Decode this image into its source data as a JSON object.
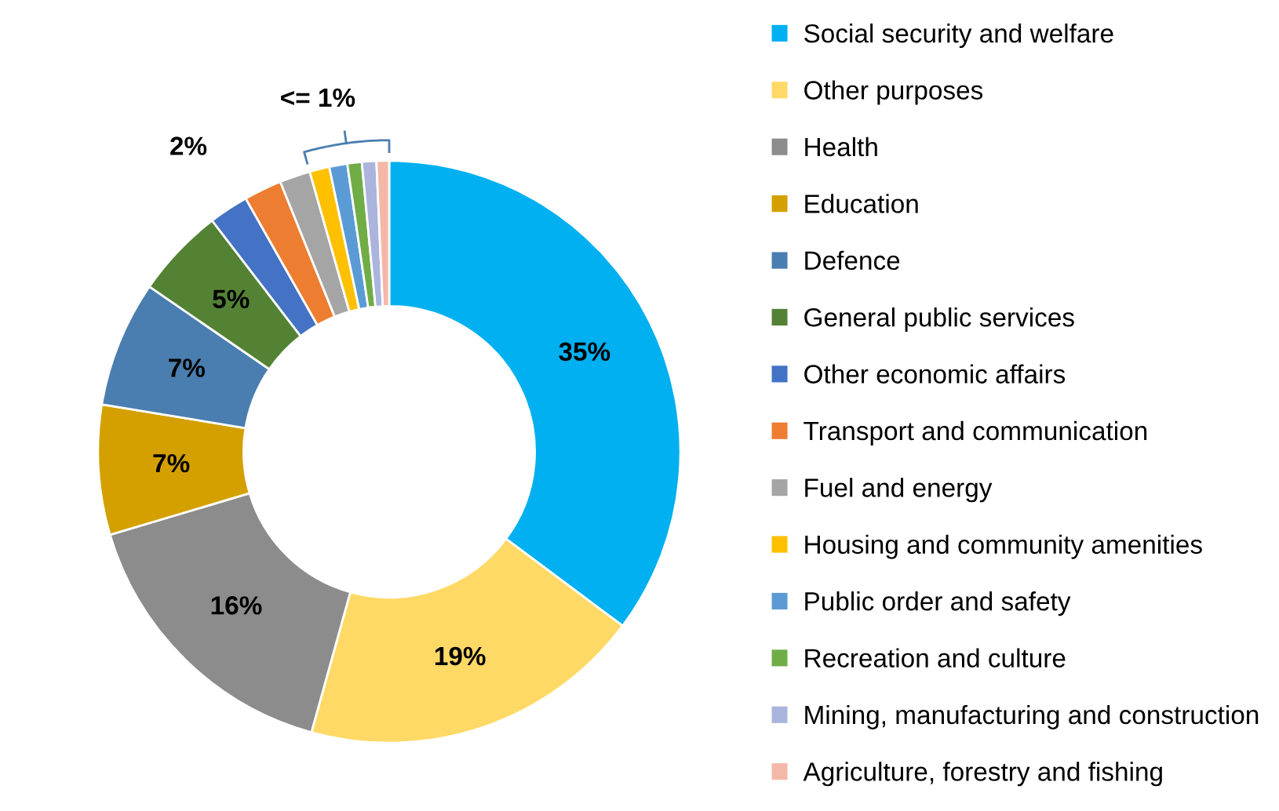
{
  "chart_data": {
    "type": "donut",
    "categories": [
      "Social security and welfare",
      "Other purposes",
      "Health",
      "Education",
      "Defence",
      "General public services",
      "Other economic affairs",
      "Transport and communication",
      "Fuel and energy",
      "Housing and community amenities",
      "Public order and safety",
      "Recreation and culture",
      "Mining, manufacturing and construction",
      "Agriculture, forestry and fishing"
    ],
    "values": [
      35.2,
      19.1,
      16.1,
      7.2,
      7.0,
      5.0,
      2.2,
      2.1,
      1.7,
      1.1,
      1.0,
      0.8,
      0.8,
      0.7
    ],
    "colors": [
      "#00b0f0",
      "#ffd966",
      "#8c8c8c",
      "#d4a000",
      "#4a7eb0",
      "#548235",
      "#4472c4",
      "#ed7d31",
      "#a5a5a5",
      "#ffc000",
      "#5b9bd5",
      "#70ad47",
      "#aab4dc",
      "#f4b8a8"
    ],
    "value_labels": [
      "35%",
      "19%",
      "16%",
      "7%",
      "7%",
      "5%",
      "2%",
      null,
      null,
      null,
      null,
      null,
      null,
      null
    ],
    "annotations": [
      "<= 1%"
    ],
    "legend": "right"
  }
}
